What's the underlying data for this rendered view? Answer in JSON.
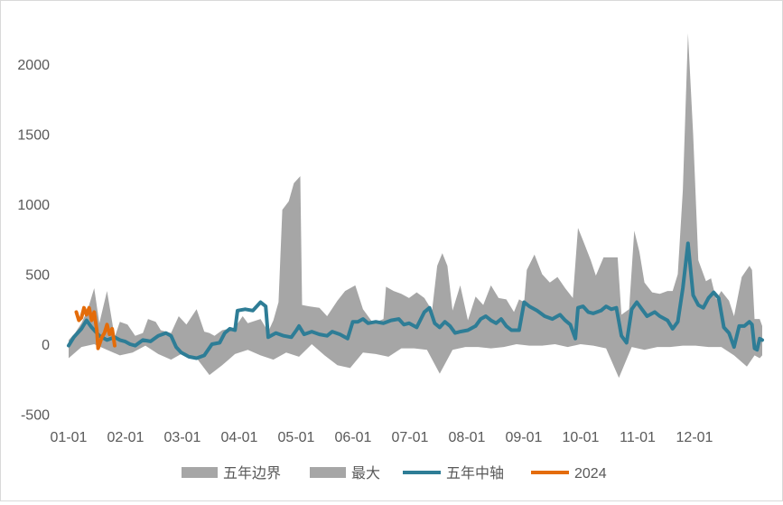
{
  "chart_data": {
    "type": "area",
    "title": "",
    "xlabel": "",
    "ylabel": "",
    "ylim": [
      -500,
      2200
    ],
    "yticks": [
      -500,
      0,
      500,
      1000,
      1500,
      2000
    ],
    "grid": false,
    "legend_position": "bottom",
    "x_categories": [
      "01-01",
      "02-01",
      "03-01",
      "04-01",
      "05-01",
      "06-01",
      "07-01",
      "08-01",
      "09-01",
      "10-01",
      "11-01",
      "12-01"
    ],
    "colors": {
      "band": "#a6a6a6",
      "max": "#a6a6a6",
      "median": "#2e7d96",
      "current": "#e46c0a"
    },
    "legend": [
      "五年边界",
      "最大",
      "五年中轴",
      "2024"
    ],
    "series": [
      {
        "name": "五年边界",
        "kind": "band",
        "upper_points": [
          [
            0,
            30
          ],
          [
            0.25,
            80
          ],
          [
            0.5,
            150
          ],
          [
            0.75,
            250
          ],
          [
            1,
            400
          ],
          [
            1.2,
            150
          ],
          [
            1.5,
            380
          ],
          [
            1.8,
            50
          ],
          [
            2,
            160
          ],
          [
            2.3,
            140
          ],
          [
            2.6,
            60
          ],
          [
            2.9,
            80
          ],
          [
            3.1,
            180
          ],
          [
            3.4,
            160
          ],
          [
            3.6,
            100
          ],
          [
            4,
            80
          ],
          [
            4.3,
            200
          ],
          [
            4.6,
            140
          ],
          [
            5,
            250
          ],
          [
            5.3,
            90
          ],
          [
            5.5,
            80
          ],
          [
            5.7,
            60
          ],
          [
            6,
            100
          ],
          [
            6.5,
            120
          ],
          [
            6.8,
            200
          ],
          [
            7,
            150
          ],
          [
            7.5,
            180
          ],
          [
            7.8,
            90
          ],
          [
            8,
            170
          ],
          [
            8.2,
            300
          ],
          [
            8.35,
            960
          ],
          [
            8.6,
            1020
          ],
          [
            8.8,
            1150
          ],
          [
            9.05,
            1200
          ],
          [
            9.12,
            280
          ],
          [
            9.4,
            270
          ],
          [
            9.8,
            260
          ],
          [
            10.1,
            200
          ],
          [
            10.5,
            310
          ],
          [
            10.8,
            380
          ],
          [
            11.2,
            420
          ],
          [
            11.5,
            250
          ],
          [
            11.9,
            150
          ],
          [
            12.3,
            180
          ],
          [
            12.4,
            410
          ],
          [
            12.7,
            380
          ],
          [
            13,
            360
          ],
          [
            13.3,
            330
          ],
          [
            13.6,
            370
          ],
          [
            13.9,
            330
          ],
          [
            14.2,
            240
          ],
          [
            14.4,
            560
          ],
          [
            14.6,
            650
          ],
          [
            14.8,
            560
          ],
          [
            15,
            240
          ],
          [
            15.3,
            420
          ],
          [
            15.6,
            170
          ],
          [
            15.9,
            340
          ],
          [
            16.2,
            280
          ],
          [
            16.5,
            420
          ],
          [
            16.8,
            330
          ],
          [
            17.1,
            320
          ],
          [
            17.4,
            230
          ],
          [
            17.6,
            320
          ],
          [
            17.8,
            300
          ],
          [
            17.9,
            530
          ],
          [
            18.2,
            640
          ],
          [
            18.5,
            500
          ],
          [
            18.8,
            440
          ],
          [
            19.1,
            480
          ],
          [
            19.4,
            400
          ],
          [
            19.7,
            330
          ],
          [
            19.9,
            830
          ],
          [
            20.1,
            740
          ],
          [
            20.4,
            600
          ],
          [
            20.6,
            490
          ],
          [
            20.9,
            620
          ],
          [
            21.2,
            620
          ],
          [
            21.45,
            620
          ],
          [
            21.6,
            210
          ],
          [
            21.9,
            250
          ],
          [
            22.1,
            810
          ],
          [
            22.3,
            660
          ],
          [
            22.5,
            440
          ],
          [
            22.8,
            370
          ],
          [
            23.1,
            360
          ],
          [
            23.4,
            380
          ],
          [
            23.6,
            380
          ],
          [
            23.8,
            500
          ],
          [
            24,
            1100
          ],
          [
            24.2,
            2220
          ],
          [
            24.4,
            1500
          ],
          [
            24.6,
            600
          ],
          [
            24.9,
            450
          ],
          [
            25.1,
            470
          ],
          [
            25.3,
            320
          ],
          [
            25.5,
            380
          ],
          [
            25.8,
            310
          ],
          [
            26,
            200
          ],
          [
            26.3,
            480
          ],
          [
            26.6,
            560
          ],
          [
            26.7,
            530
          ],
          [
            26.8,
            180
          ],
          [
            27,
            180
          ],
          [
            27.1,
            130
          ]
        ],
        "lower_points": [
          [
            0,
            -100
          ],
          [
            0.5,
            -20
          ],
          [
            1,
            0
          ],
          [
            1.5,
            -40
          ],
          [
            2,
            -80
          ],
          [
            2.5,
            -60
          ],
          [
            3,
            -10
          ],
          [
            3.5,
            -70
          ],
          [
            4,
            -110
          ],
          [
            4.5,
            -60
          ],
          [
            5,
            -100
          ],
          [
            5.5,
            -220
          ],
          [
            6,
            -150
          ],
          [
            6.5,
            -70
          ],
          [
            7,
            -40
          ],
          [
            7.5,
            -80
          ],
          [
            8,
            -110
          ],
          [
            8.5,
            -60
          ],
          [
            9,
            -90
          ],
          [
            9.5,
            0
          ],
          [
            10,
            -80
          ],
          [
            10.5,
            -150
          ],
          [
            11,
            -170
          ],
          [
            11.5,
            -60
          ],
          [
            12,
            -70
          ],
          [
            12.5,
            -90
          ],
          [
            13,
            -30
          ],
          [
            13.5,
            -30
          ],
          [
            14,
            -40
          ],
          [
            14.5,
            -210
          ],
          [
            15,
            -40
          ],
          [
            15.5,
            -20
          ],
          [
            16,
            -20
          ],
          [
            16.5,
            -30
          ],
          [
            17,
            -20
          ],
          [
            17.5,
            0
          ],
          [
            18,
            -10
          ],
          [
            18.5,
            -10
          ],
          [
            19,
            0
          ],
          [
            19.5,
            -20
          ],
          [
            20,
            0
          ],
          [
            20.5,
            -10
          ],
          [
            21,
            -30
          ],
          [
            21.5,
            -240
          ],
          [
            22,
            -20
          ],
          [
            22.5,
            -40
          ],
          [
            23,
            -20
          ],
          [
            23.5,
            -20
          ],
          [
            24,
            -10
          ],
          [
            24.5,
            -10
          ],
          [
            25,
            -20
          ],
          [
            25.5,
            -20
          ],
          [
            26,
            -80
          ],
          [
            26.5,
            -160
          ],
          [
            26.8,
            -80
          ],
          [
            27,
            -100
          ],
          [
            27.1,
            -80
          ]
        ]
      },
      {
        "name": "最大",
        "kind": "area"
      },
      {
        "name": "五年中轴",
        "kind": "line",
        "points": [
          [
            0,
            -10
          ],
          [
            0.2,
            50
          ],
          [
            0.5,
            110
          ],
          [
            0.7,
            170
          ],
          [
            0.9,
            120
          ],
          [
            1.2,
            60
          ],
          [
            1.5,
            30
          ],
          [
            1.8,
            50
          ],
          [
            2,
            30
          ],
          [
            2.2,
            20
          ],
          [
            2.4,
            0
          ],
          [
            2.6,
            -10
          ],
          [
            2.9,
            30
          ],
          [
            3.2,
            20
          ],
          [
            3.5,
            60
          ],
          [
            3.8,
            80
          ],
          [
            4,
            60
          ],
          [
            4.2,
            -20
          ],
          [
            4.4,
            -60
          ],
          [
            4.7,
            -90
          ],
          [
            5,
            -100
          ],
          [
            5.3,
            -80
          ],
          [
            5.6,
            0
          ],
          [
            5.9,
            10
          ],
          [
            6.1,
            80
          ],
          [
            6.3,
            110
          ],
          [
            6.5,
            100
          ],
          [
            6.6,
            240
          ],
          [
            6.9,
            250
          ],
          [
            7.2,
            240
          ],
          [
            7.5,
            300
          ],
          [
            7.7,
            270
          ],
          [
            7.8,
            50
          ],
          [
            8.1,
            80
          ],
          [
            8.4,
            60
          ],
          [
            8.7,
            50
          ],
          [
            8.9,
            100
          ],
          [
            9,
            130
          ],
          [
            9.2,
            70
          ],
          [
            9.5,
            90
          ],
          [
            9.8,
            70
          ],
          [
            10.1,
            60
          ],
          [
            10.3,
            90
          ],
          [
            10.6,
            70
          ],
          [
            10.9,
            40
          ],
          [
            11.1,
            160
          ],
          [
            11.3,
            160
          ],
          [
            11.5,
            180
          ],
          [
            11.7,
            150
          ],
          [
            12,
            160
          ],
          [
            12.3,
            150
          ],
          [
            12.6,
            170
          ],
          [
            12.9,
            180
          ],
          [
            13.1,
            140
          ],
          [
            13.3,
            150
          ],
          [
            13.6,
            120
          ],
          [
            13.9,
            230
          ],
          [
            14.1,
            260
          ],
          [
            14.3,
            150
          ],
          [
            14.5,
            120
          ],
          [
            14.7,
            160
          ],
          [
            14.9,
            130
          ],
          [
            15.1,
            80
          ],
          [
            15.3,
            90
          ],
          [
            15.6,
            100
          ],
          [
            15.9,
            130
          ],
          [
            16.1,
            180
          ],
          [
            16.3,
            200
          ],
          [
            16.5,
            170
          ],
          [
            16.7,
            150
          ],
          [
            16.9,
            180
          ],
          [
            17.1,
            130
          ],
          [
            17.3,
            100
          ],
          [
            17.6,
            100
          ],
          [
            17.8,
            300
          ],
          [
            18,
            270
          ],
          [
            18.3,
            240
          ],
          [
            18.6,
            200
          ],
          [
            18.9,
            180
          ],
          [
            19.2,
            210
          ],
          [
            19.4,
            170
          ],
          [
            19.6,
            140
          ],
          [
            19.8,
            40
          ],
          [
            19.9,
            260
          ],
          [
            20.1,
            270
          ],
          [
            20.3,
            230
          ],
          [
            20.5,
            220
          ],
          [
            20.8,
            240
          ],
          [
            21,
            270
          ],
          [
            21.2,
            250
          ],
          [
            21.4,
            260
          ],
          [
            21.6,
            60
          ],
          [
            21.8,
            10
          ],
          [
            22,
            250
          ],
          [
            22.2,
            300
          ],
          [
            22.4,
            250
          ],
          [
            22.6,
            200
          ],
          [
            22.9,
            230
          ],
          [
            23.1,
            200
          ],
          [
            23.4,
            170
          ],
          [
            23.6,
            110
          ],
          [
            23.8,
            160
          ],
          [
            24,
            400
          ],
          [
            24.2,
            720
          ],
          [
            24.4,
            350
          ],
          [
            24.6,
            280
          ],
          [
            24.8,
            260
          ],
          [
            25,
            330
          ],
          [
            25.2,
            370
          ],
          [
            25.4,
            330
          ],
          [
            25.6,
            120
          ],
          [
            25.8,
            80
          ],
          [
            26,
            -20
          ],
          [
            26.2,
            130
          ],
          [
            26.4,
            130
          ],
          [
            26.6,
            160
          ],
          [
            26.7,
            140
          ],
          [
            26.8,
            -30
          ],
          [
            26.9,
            -40
          ],
          [
            27,
            40
          ],
          [
            27.1,
            30
          ]
        ]
      },
      {
        "name": "2024",
        "kind": "line",
        "points": [
          [
            0.3,
            230
          ],
          [
            0.4,
            170
          ],
          [
            0.5,
            190
          ],
          [
            0.6,
            260
          ],
          [
            0.7,
            210
          ],
          [
            0.8,
            260
          ],
          [
            0.9,
            170
          ],
          [
            1.0,
            230
          ],
          [
            1.1,
            100
          ],
          [
            1.15,
            -30
          ],
          [
            1.3,
            50
          ],
          [
            1.4,
            80
          ],
          [
            1.5,
            140
          ],
          [
            1.6,
            70
          ],
          [
            1.7,
            110
          ],
          [
            1.8,
            -10
          ]
        ]
      }
    ]
  }
}
